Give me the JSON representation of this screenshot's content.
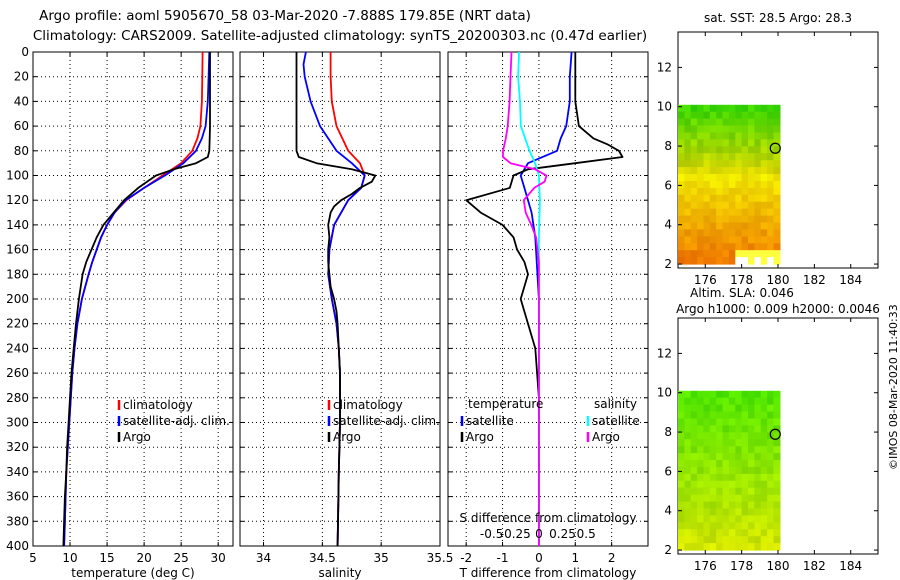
{
  "header": {
    "line1": "Argo profile: aoml 5905670_58 03-Mar-2020 -7.888S 179.85E (NRT data)",
    "line2": "Climatology: CARS2009. Satellite-adjusted climatology: synTS_20200303.nc (0.47d earlier)"
  },
  "footer": {
    "stamp": "©IMOS 08-Mar-2020 11:40:33"
  },
  "colors": {
    "climatology": "#ff0000",
    "satellite": "#0000ff",
    "argo": "#000000",
    "sat_salinity": "#00ffff",
    "argo_salinity": "#ff00ff"
  },
  "chart_data": [
    {
      "type": "line",
      "id": "temperature",
      "xlabel": "temperature (deg C)",
      "ylabel": "",
      "xlim": [
        5,
        32
      ],
      "ylim": [
        400,
        0
      ],
      "xticks": [
        "5",
        "10",
        "15",
        "20",
        "25",
        "30"
      ],
      "yticks": [
        "0",
        "20",
        "40",
        "60",
        "80",
        "100",
        "120",
        "140",
        "160",
        "180",
        "200",
        "220",
        "240",
        "260",
        "280",
        "300",
        "320",
        "340",
        "360",
        "380",
        "400"
      ],
      "legend": [
        "climatology",
        "satellite-adj. clim.",
        "Argo"
      ],
      "series": [
        {
          "name": "climatology",
          "depth": [
            0,
            20,
            40,
            60,
            70,
            80,
            90,
            100,
            110,
            120,
            130,
            140,
            150,
            160,
            170,
            180,
            200,
            220,
            240,
            260,
            280,
            300,
            320,
            340,
            360,
            380,
            400
          ],
          "values": [
            27.9,
            27.85,
            27.8,
            27.6,
            27.2,
            26.5,
            25.0,
            22.5,
            20.0,
            17.6,
            16.0,
            15.0,
            14.2,
            13.6,
            13.0,
            12.5,
            11.6,
            11.0,
            10.6,
            10.3,
            10.1,
            9.9,
            9.7,
            9.5,
            9.4,
            9.3,
            9.2
          ]
        },
        {
          "name": "satellite-adj. clim.",
          "depth": [
            0,
            20,
            40,
            60,
            70,
            80,
            90,
            100,
            110,
            120,
            130,
            140,
            150,
            160,
            170,
            180,
            200,
            220,
            240,
            260,
            280,
            300,
            320,
            340,
            360,
            380,
            400
          ],
          "values": [
            28.8,
            28.7,
            28.6,
            28.3,
            27.8,
            27.0,
            25.3,
            22.8,
            20.0,
            17.5,
            16.0,
            15.0,
            14.2,
            13.6,
            13.0,
            12.5,
            11.6,
            11.0,
            10.6,
            10.3,
            10.1,
            9.9,
            9.7,
            9.5,
            9.4,
            9.3,
            9.2
          ]
        },
        {
          "name": "Argo",
          "depth": [
            0,
            20,
            40,
            60,
            70,
            80,
            85,
            90,
            95,
            100,
            110,
            120,
            130,
            140,
            150,
            160,
            170,
            180,
            200,
            220,
            240,
            260,
            280,
            300,
            320,
            340,
            360,
            380,
            400
          ],
          "values": [
            28.9,
            28.9,
            28.9,
            28.9,
            28.85,
            28.8,
            28.6,
            27.0,
            24.0,
            21.6,
            19.2,
            17.3,
            15.9,
            14.5,
            13.6,
            12.9,
            12.2,
            11.7,
            11.2,
            10.8,
            10.5,
            10.2,
            10.0,
            9.8,
            9.6,
            9.5,
            9.3,
            9.2,
            9.1
          ]
        }
      ]
    },
    {
      "type": "line",
      "id": "salinity",
      "xlabel": "salinity",
      "xlim": [
        33.8,
        35.5
      ],
      "ylim": [
        400,
        0
      ],
      "xticks": [
        "34",
        "34.5",
        "35",
        "35.5"
      ],
      "legend": [
        "climatology",
        "satellite-adj. clim.",
        "Argo"
      ],
      "series": [
        {
          "name": "climatology",
          "depth": [
            0,
            20,
            40,
            60,
            80,
            90,
            100,
            110,
            120,
            140,
            160,
            180,
            200,
            220,
            240,
            260,
            300,
            340,
            400
          ],
          "values": [
            34.57,
            34.57,
            34.58,
            34.62,
            34.72,
            34.82,
            34.86,
            34.83,
            34.72,
            34.6,
            34.56,
            34.55,
            34.58,
            34.62,
            34.64,
            34.65,
            34.65,
            34.64,
            34.63
          ]
        },
        {
          "name": "satellite-adj. clim.",
          "depth": [
            0,
            10,
            20,
            40,
            60,
            80,
            90,
            100,
            110,
            120,
            140,
            160,
            180,
            200,
            220,
            240,
            260,
            300,
            340,
            400
          ],
          "values": [
            34.36,
            34.34,
            34.35,
            34.4,
            34.48,
            34.62,
            34.75,
            34.86,
            34.83,
            34.72,
            34.6,
            34.56,
            34.55,
            34.58,
            34.62,
            34.64,
            34.65,
            34.65,
            34.64,
            34.63
          ]
        },
        {
          "name": "Argo",
          "depth": [
            0,
            20,
            40,
            60,
            70,
            80,
            85,
            90,
            95,
            100,
            105,
            110,
            115,
            120,
            125,
            130,
            140,
            150,
            160,
            170,
            180,
            190,
            200,
            210,
            220,
            240,
            260,
            300,
            340,
            400
          ],
          "values": [
            34.28,
            34.28,
            34.28,
            34.28,
            34.28,
            34.28,
            34.3,
            34.45,
            34.75,
            34.95,
            34.92,
            34.82,
            34.75,
            34.66,
            34.6,
            34.57,
            34.55,
            34.56,
            34.55,
            34.55,
            34.56,
            34.57,
            34.6,
            34.62,
            34.63,
            34.64,
            34.65,
            34.65,
            34.64,
            34.63
          ]
        }
      ]
    },
    {
      "type": "line",
      "id": "difference",
      "xlabel": "T difference from climatology",
      "xlabel_top": "S difference from climatology",
      "xlim": [
        -2.5,
        3.0
      ],
      "ylim": [
        400,
        0
      ],
      "xticks": [
        "-2",
        "-1",
        "0",
        "1",
        "2"
      ],
      "xticks_salinity": [
        "-0.5",
        "-0.25",
        "0",
        "0.25",
        "0.5"
      ],
      "legend_temperature": {
        "title": "temperature",
        "items": [
          "satellite",
          "Argo"
        ]
      },
      "legend_salinity": {
        "title": "salinity",
        "items": [
          "satellite",
          "Argo"
        ]
      },
      "series": [
        {
          "name": "temperature satellite",
          "depth": [
            0,
            20,
            40,
            60,
            70,
            80,
            90,
            100,
            110,
            130,
            150,
            200,
            300,
            400
          ],
          "values": [
            0.9,
            0.85,
            0.85,
            0.75,
            0.6,
            0.5,
            -0.3,
            -0.5,
            -0.4,
            -0.2,
            -0.1,
            0.0,
            0.0,
            0.0
          ]
        },
        {
          "name": "temperature Argo",
          "depth": [
            0,
            20,
            40,
            60,
            70,
            75,
            80,
            85,
            90,
            95,
            100,
            110,
            120,
            130,
            140,
            150,
            160,
            170,
            180,
            200,
            220,
            240,
            260,
            280,
            300,
            400
          ],
          "values": [
            1.0,
            1.0,
            1.0,
            1.1,
            1.5,
            1.9,
            2.2,
            2.3,
            1.0,
            -0.3,
            -0.7,
            -0.8,
            -2.0,
            -1.6,
            -1.0,
            -0.7,
            -0.6,
            -0.4,
            -0.3,
            -0.5,
            -0.3,
            -0.1,
            -0.05,
            0.0,
            0.0,
            0.0
          ]
        },
        {
          "name": "salinity satellite",
          "depth": [
            0,
            20,
            40,
            60,
            80,
            90,
            100,
            120,
            150,
            200,
            300,
            400
          ],
          "values": [
            -0.21,
            -0.22,
            -0.2,
            -0.19,
            -0.1,
            -0.04,
            0.0,
            0.01,
            0.0,
            0.0,
            0.0,
            0.0
          ]
        },
        {
          "name": "salinity Argo",
          "depth": [
            0,
            20,
            40,
            60,
            70,
            80,
            85,
            90,
            95,
            100,
            105,
            110,
            120,
            130,
            140,
            150,
            170,
            200,
            250,
            300,
            400
          ],
          "values": [
            -0.29,
            -0.3,
            -0.31,
            -0.33,
            -0.35,
            -0.38,
            -0.38,
            -0.3,
            -0.04,
            0.08,
            0.06,
            -0.05,
            -0.16,
            -0.14,
            -0.08,
            -0.03,
            0.0,
            0.0,
            0.0,
            0.0,
            0.0
          ]
        }
      ]
    },
    {
      "type": "heatmap",
      "id": "sst-map",
      "title": "sat. SST: 28.5 Argo: 28.3",
      "xticks": [
        "176",
        "178",
        "180",
        "182",
        "184"
      ],
      "yticks": [
        "2",
        "4",
        "6",
        "8",
        "10",
        "12"
      ],
      "xlim": [
        174.5,
        185.5
      ],
      "ylim": [
        1.8,
        13.8
      ],
      "data_extent": {
        "lon": [
          174.5,
          180.1
        ],
        "lat": [
          2.0,
          10.1
        ]
      },
      "marker": {
        "lon": 179.85,
        "lat": 7.888
      }
    },
    {
      "type": "heatmap",
      "id": "sla-map",
      "title": "Altim. SLA: 0.046",
      "subtitle": "Argo h1000: 0.009 h2000: 0.0046",
      "xticks": [
        "176",
        "178",
        "180",
        "182",
        "184"
      ],
      "yticks": [
        "2",
        "4",
        "6",
        "8",
        "10",
        "12"
      ],
      "xlim": [
        174.5,
        185.5
      ],
      "ylim": [
        1.8,
        13.8
      ],
      "data_extent": {
        "lon": [
          174.5,
          180.1
        ],
        "lat": [
          2.0,
          10.1
        ]
      },
      "marker": {
        "lon": 179.85,
        "lat": 7.888
      }
    }
  ]
}
